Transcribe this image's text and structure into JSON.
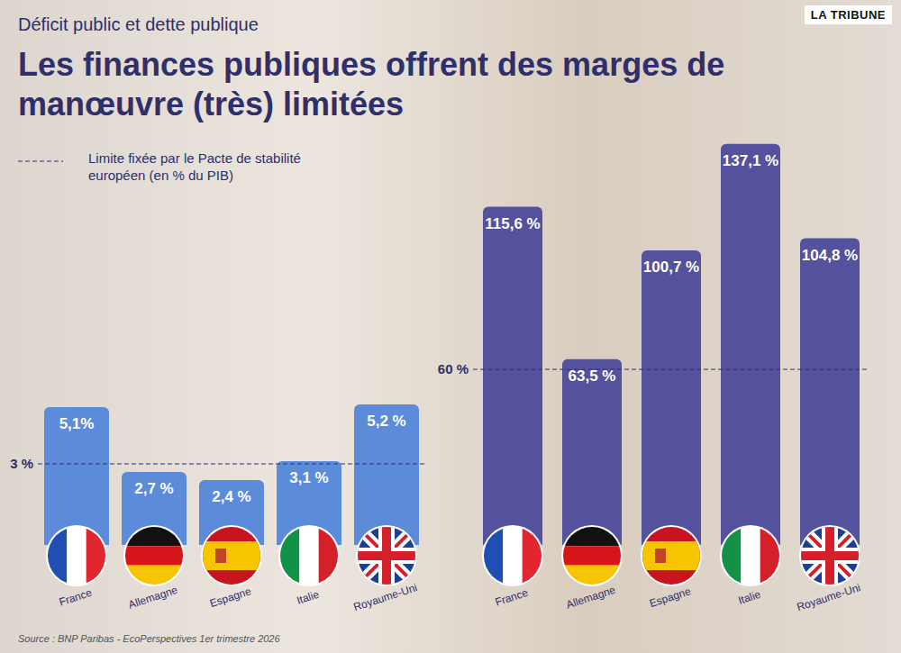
{
  "header": {
    "kicker": "Déficit public et dette publique",
    "title": "Les finances publiques offrent des marges de manœuvre (très) limitées",
    "brand": "LA TRIBUNE",
    "legend_note": "Limite fixée par le Pacte de stabilité européen (en % du PIB)",
    "source": "Source : BNP Paribas - EcoPerspectives 1er trimestre 2026"
  },
  "chart_data": [
    {
      "type": "bar",
      "categories": [
        "France",
        "Allemagne",
        "Espagne",
        "Italie",
        "Royaume-Uni"
      ],
      "values": [
        5.1,
        2.7,
        2.4,
        3.1,
        5.2
      ],
      "value_labels": [
        "5,1%",
        "2,7 %",
        "2,4 %",
        "3,1 %",
        "5,2 %"
      ],
      "data_labels": true,
      "color": "#5b8bd9",
      "ylim": [
        0,
        6
      ],
      "tick_labels": "x",
      "reference_line": {
        "value": 3,
        "label": "3 %"
      }
    },
    {
      "type": "bar",
      "categories": [
        "France",
        "Allemagne",
        "Espagne",
        "Italie",
        "Royaume-Uni"
      ],
      "values": [
        115.6,
        63.5,
        100.7,
        137.1,
        104.8
      ],
      "value_labels": [
        "115,6 %",
        "63,5 %",
        "100,7 %",
        "137,1 %",
        "104,8 %"
      ],
      "data_labels": true,
      "color": "#54529c",
      "ylim": [
        0,
        145
      ],
      "tick_labels": "x",
      "reference_line": {
        "value": 60,
        "label": "60 %"
      }
    }
  ]
}
